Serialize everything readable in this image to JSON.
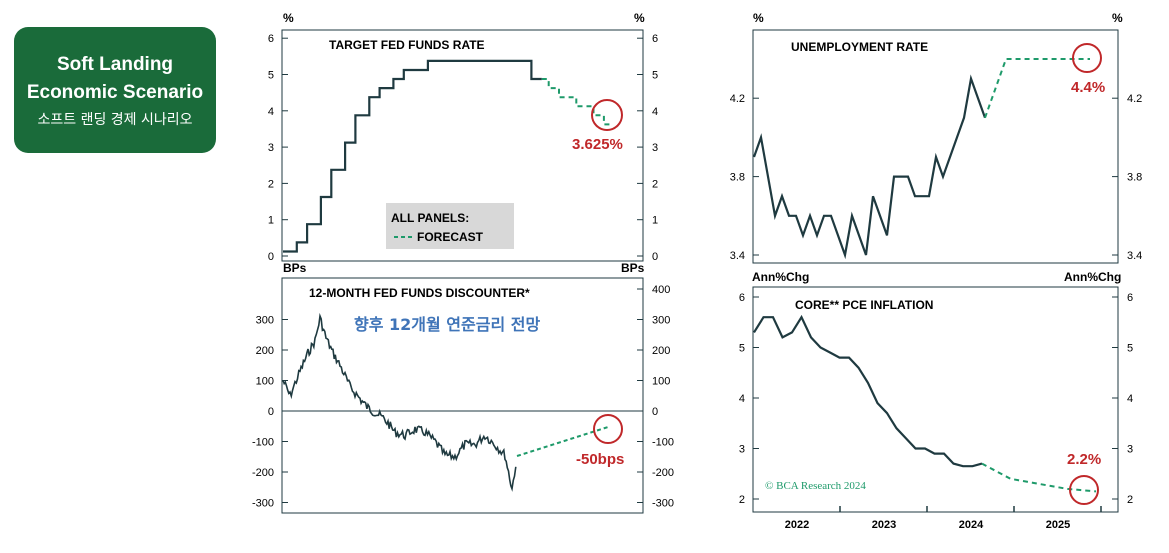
{
  "badge": {
    "line1": "Soft Landing",
    "line2": "Economic Scenario",
    "line3": "소프트 랜딩 경제 시나리오",
    "color": "#1a6b3a"
  },
  "colors": {
    "line": "#1f3a40",
    "forecast": "#1e9a6a",
    "annotation": "#c0282a",
    "korean_label": "#3f74b8",
    "legend_bg": "#d8d8d8"
  },
  "chart_data": [
    {
      "type": "line",
      "title": "TARGET FED FUNDS RATE",
      "ylabel_left": "%",
      "ylabel_right": "%",
      "xlabel_left": "BPs",
      "xlabel_right": "BPs",
      "ylim": [
        0,
        6
      ],
      "yticks": [
        "0",
        "1",
        "2",
        "3",
        "4",
        "5",
        "6"
      ],
      "legend": {
        "title": "ALL PANELS:",
        "entry": "FORECAST"
      },
      "series": [
        {
          "values": [
            [
              0,
              0.125
            ],
            [
              4,
              0.125
            ],
            [
              4,
              0.375
            ],
            [
              7,
              0.375
            ],
            [
              7,
              0.875
            ],
            [
              11,
              0.875
            ],
            [
              11,
              1.625
            ],
            [
              14,
              1.625
            ],
            [
              14,
              2.375
            ],
            [
              18,
              2.375
            ],
            [
              18,
              3.125
            ],
            [
              21,
              3.125
            ],
            [
              21,
              3.875
            ],
            [
              25,
              3.875
            ],
            [
              25,
              4.375
            ],
            [
              28,
              4.375
            ],
            [
              28,
              4.625
            ],
            [
              32,
              4.625
            ],
            [
              32,
              4.875
            ],
            [
              35,
              4.875
            ],
            [
              35,
              5.125
            ],
            [
              42,
              5.125
            ],
            [
              42,
              5.375
            ],
            [
              72,
              5.375
            ],
            [
              72,
              4.875
            ],
            [
              75,
              4.875
            ]
          ]
        },
        {
          "forecast": true,
          "values": [
            [
              75,
              4.875
            ],
            [
              77,
              4.875
            ],
            [
              77,
              4.625
            ],
            [
              80,
              4.625
            ],
            [
              80,
              4.375
            ],
            [
              85,
              4.375
            ],
            [
              85,
              4.125
            ],
            [
              90,
              4.125
            ],
            [
              90,
              3.875
            ],
            [
              93,
              3.875
            ],
            [
              93,
              3.625
            ],
            [
              95,
              3.625
            ]
          ]
        }
      ],
      "annotation": "3.625%"
    },
    {
      "type": "line",
      "title": "12-MONTH FED FUNDS DISCOUNTER*",
      "subtitle_korean": "향후 12개월 연준금리 전망",
      "ylim": [
        -300,
        400
      ],
      "yticks": [
        "300",
        "200",
        "100",
        "0",
        "-100",
        "-200",
        "-300"
      ],
      "yticks_right": [
        "400",
        "300",
        "200",
        "100",
        "0",
        "-100",
        "-200",
        "-300"
      ],
      "annotation": "-50bps"
    },
    {
      "type": "line",
      "title": "UNEMPLOYMENT RATE",
      "ylabel_left": "%",
      "ylabel_right": "%",
      "xlabel_left": "Ann%Chg",
      "xlabel_right": "Ann%Chg",
      "ylim": [
        3.4,
        4.5
      ],
      "yticks": [
        "3.4",
        "3.8",
        "4.2"
      ],
      "series": [
        {
          "values": [
            [
              0,
              3.9
            ],
            [
              1,
              4.0
            ],
            [
              2,
              3.8
            ],
            [
              3,
              3.6
            ],
            [
              4,
              3.7
            ],
            [
              5,
              3.6
            ],
            [
              6,
              3.6
            ],
            [
              7,
              3.5
            ],
            [
              8,
              3.6
            ],
            [
              9,
              3.5
            ],
            [
              10,
              3.6
            ],
            [
              11,
              3.6
            ],
            [
              12,
              3.5
            ],
            [
              13,
              3.4
            ],
            [
              14,
              3.6
            ],
            [
              15,
              3.5
            ],
            [
              16,
              3.4
            ],
            [
              17,
              3.7
            ],
            [
              18,
              3.6
            ],
            [
              19,
              3.5
            ],
            [
              20,
              3.8
            ],
            [
              21,
              3.8
            ],
            [
              22,
              3.8
            ],
            [
              23,
              3.7
            ],
            [
              24,
              3.7
            ],
            [
              25,
              3.7
            ],
            [
              26,
              3.9
            ],
            [
              27,
              3.8
            ],
            [
              28,
              3.9
            ],
            [
              29,
              4.0
            ],
            [
              30,
              4.1
            ],
            [
              31,
              4.3
            ],
            [
              32,
              4.2
            ],
            [
              33,
              4.1
            ]
          ]
        },
        {
          "forecast": true,
          "values": [
            [
              33,
              4.1
            ],
            [
              36,
              4.4
            ],
            [
              48,
              4.4
            ]
          ]
        }
      ],
      "annotation": "4.4%"
    },
    {
      "type": "line",
      "title": "CORE** PCE INFLATION",
      "ylim": [
        2,
        6
      ],
      "yticks": [
        "2",
        "3",
        "4",
        "5",
        "6"
      ],
      "xticks": [
        "2022",
        "2023",
        "2024",
        "2025"
      ],
      "credit": "© BCA Research 2024",
      "series": [
        {
          "values": [
            [
              0,
              5.3
            ],
            [
              1,
              5.6
            ],
            [
              2,
              5.6
            ],
            [
              3,
              5.2
            ],
            [
              4,
              5.3
            ],
            [
              5,
              5.6
            ],
            [
              6,
              5.2
            ],
            [
              7,
              5.0
            ],
            [
              8,
              4.9
            ],
            [
              9,
              4.8
            ],
            [
              10,
              4.8
            ],
            [
              11,
              4.6
            ],
            [
              12,
              4.3
            ],
            [
              13,
              3.9
            ],
            [
              14,
              3.7
            ],
            [
              15,
              3.4
            ],
            [
              16,
              3.2
            ],
            [
              17,
              3.0
            ],
            [
              18,
              3.0
            ],
            [
              19,
              2.9
            ],
            [
              20,
              2.9
            ],
            [
              21,
              2.7
            ],
            [
              22,
              2.65
            ],
            [
              23,
              2.65
            ],
            [
              24,
              2.7
            ]
          ]
        },
        {
          "forecast": true,
          "values": [
            [
              24,
              2.7
            ],
            [
              27,
              2.4
            ],
            [
              30,
              2.3
            ],
            [
              33,
              2.2
            ],
            [
              36,
              2.15
            ]
          ]
        }
      ],
      "annotation": "2.2%"
    }
  ]
}
